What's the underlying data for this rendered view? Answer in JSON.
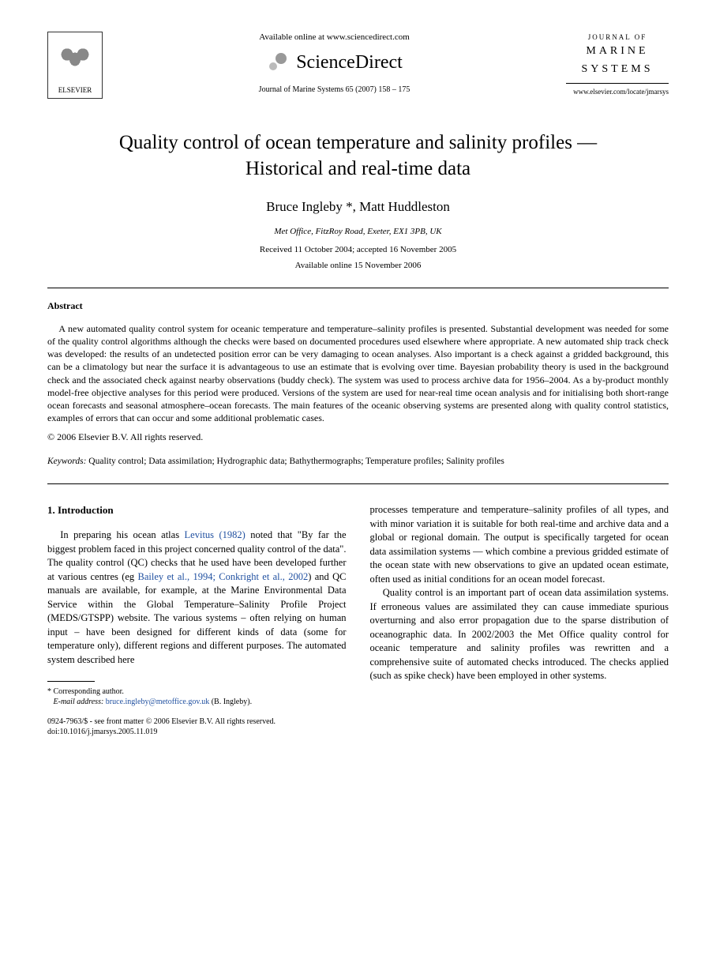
{
  "header": {
    "publisher_name": "ELSEVIER",
    "available_online": "Available online at www.sciencedirect.com",
    "sd_brand": "ScienceDirect",
    "journal_reference": "Journal of Marine Systems 65 (2007) 158 – 175",
    "journal_logo_line1": "JOURNAL OF",
    "journal_logo_line2": "MARINE",
    "journal_logo_line3": "SYSTEMS",
    "journal_url": "www.elsevier.com/locate/jmarsys"
  },
  "article": {
    "title": "Quality control of ocean temperature and salinity profiles — Historical and real-time data",
    "authors": "Bruce Ingleby *, Matt Huddleston",
    "affiliation": "Met Office, FitzRoy Road, Exeter, EX1 3PB, UK",
    "received": "Received 11 October 2004; accepted 16 November 2005",
    "available": "Available online 15 November 2006"
  },
  "abstract": {
    "heading": "Abstract",
    "text": "A new automated quality control system for oceanic temperature and temperature–salinity profiles is presented. Substantial development was needed for some of the quality control algorithms although the checks were based on documented procedures used elsewhere where appropriate. A new automated ship track check was developed: the results of an undetected position error can be very damaging to ocean analyses. Also important is a check against a gridded background, this can be a climatology but near the surface it is advantageous to use an estimate that is evolving over time. Bayesian probability theory is used in the background check and the associated check against nearby observations (buddy check). The system was used to process archive data for 1956–2004. As a by-product monthly model-free objective analyses for this period were produced. Versions of the system are used for near-real time ocean analysis and for initialising both short-range ocean forecasts and seasonal atmosphere–ocean forecasts. The main features of the oceanic observing systems are presented along with quality control statistics, examples of errors that can occur and some additional problematic cases.",
    "copyright": "© 2006 Elsevier B.V. All rights reserved."
  },
  "keywords": {
    "label": "Keywords:",
    "text": " Quality control; Data assimilation; Hydrographic data; Bathythermographs; Temperature profiles; Salinity profiles"
  },
  "body": {
    "section_heading": "1. Introduction",
    "col1_p1_a": "In preparing his ocean atlas ",
    "col1_p1_cite1": "Levitus (1982)",
    "col1_p1_b": " noted that \"By far the biggest problem faced in this project concerned quality control of the data\". The quality control (QC) checks that he used have been developed further at various centres (eg ",
    "col1_p1_cite2": "Bailey et al., 1994; Conkright et al., 2002",
    "col1_p1_c": ") and QC manuals are available, for example, at the Marine Environmental Data Service within the Global Temperature–Salinity Profile Project (MEDS/GTSPP) website. The various systems – often relying on human input – have been designed for different kinds of data (some for temperature only), different regions and different purposes. The automated system described here",
    "col2_p1": "processes temperature and temperature–salinity profiles of all types, and with minor variation it is suitable for both real-time and archive data and a global or regional domain. The output is specifically targeted for ocean data assimilation systems — which combine a previous gridded estimate of the ocean state with new observations to give an updated ocean estimate, often used as initial conditions for an ocean model forecast.",
    "col2_p2": "Quality control is an important part of ocean data assimilation systems. If erroneous values are assimilated they can cause immediate spurious overturning and also error propagation due to the sparse distribution of oceanographic data. In 2002/2003 the Met Office quality control for oceanic temperature and salinity profiles was rewritten and a comprehensive suite of automated checks introduced. The checks applied (such as spike check) have been employed in other systems."
  },
  "footnote": {
    "corresponding": "* Corresponding author.",
    "email_label": "E-mail address:",
    "email": "bruce.ingleby@metoffice.gov.uk",
    "email_suffix": " (B. Ingleby)."
  },
  "bottom": {
    "issn_line": "0924-7963/$ - see front matter © 2006 Elsevier B.V. All rights reserved.",
    "doi_line": "doi:10.1016/j.jmarsys.2005.11.019"
  },
  "colors": {
    "text": "#000000",
    "link": "#2050a0",
    "background": "#ffffff"
  }
}
